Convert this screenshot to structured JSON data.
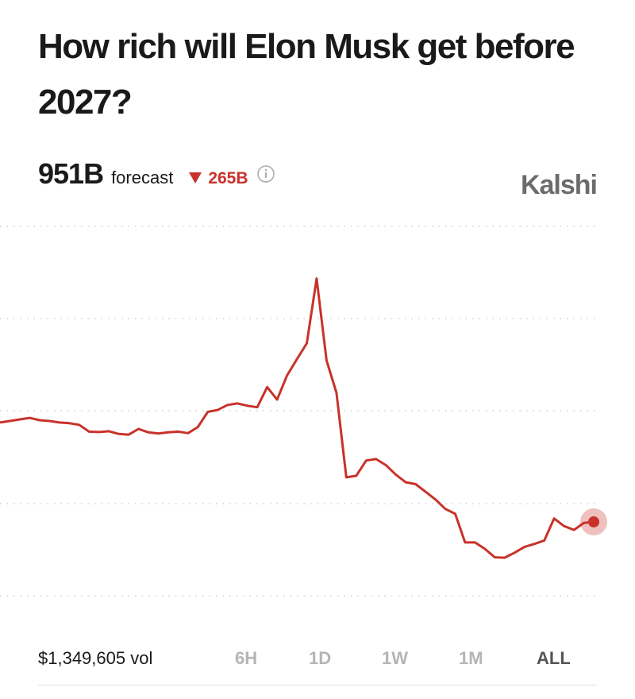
{
  "header": {
    "title": "How rich will Elon Musk get before 2027?",
    "forecast_value": "951B",
    "forecast_label": "forecast",
    "change": "265B",
    "brand": "Kalshi"
  },
  "chart_data": {
    "type": "line",
    "color": "#c8322b",
    "ylim": [
      757,
      1727
    ],
    "values": [
      1212,
      1216,
      1220,
      1224,
      1218,
      1216,
      1212,
      1210,
      1206,
      1188,
      1187,
      1189,
      1182,
      1180,
      1195,
      1186,
      1183,
      1186,
      1188,
      1184,
      1200,
      1240,
      1245,
      1258,
      1262,
      1256,
      1252,
      1305,
      1272,
      1335,
      1378,
      1420,
      1590,
      1375,
      1290,
      1068,
      1072,
      1112,
      1116,
      1100,
      1075,
      1055,
      1050,
      1030,
      1010,
      985,
      972,
      897,
      897,
      880,
      858,
      857,
      870,
      885,
      893,
      902,
      960,
      940,
      930,
      948,
      951
    ]
  },
  "footer": {
    "volume": "$1,349,605 vol",
    "ranges": [
      "6H",
      "1D",
      "1W",
      "1M",
      "ALL"
    ],
    "active_range": "ALL"
  }
}
